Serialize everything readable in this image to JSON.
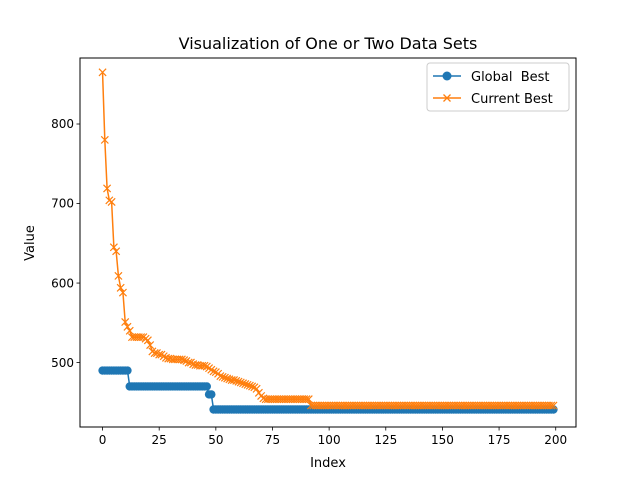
{
  "chart_data": {
    "type": "line",
    "title": "Visualization of One or Two Data Sets",
    "xlabel": "Index",
    "ylabel": "Value",
    "xlim": [
      -9.95,
      208.95
    ],
    "ylim": [
      419,
      883
    ],
    "xticks": [
      0,
      25,
      50,
      75,
      100,
      125,
      150,
      175,
      200
    ],
    "yticks": [
      500,
      600,
      700,
      800
    ],
    "legend_position": "upper right",
    "grid": false,
    "series": [
      {
        "name": "Global  Best",
        "color": "#1f77b4",
        "marker": "circle",
        "segments": [
          {
            "from": 0,
            "to": 11,
            "value": 490
          },
          {
            "from": 12,
            "to": 46,
            "value": 470
          },
          {
            "from": 47,
            "to": 48,
            "value": 460
          },
          {
            "from": 49,
            "to": 199,
            "value": 441
          }
        ]
      },
      {
        "name": "Current Best",
        "color": "#ff7f0e",
        "marker": "x",
        "points": [
          [
            0,
            865
          ],
          [
            1,
            780
          ],
          [
            2,
            719
          ],
          [
            3,
            704
          ],
          [
            4,
            702
          ],
          [
            5,
            645
          ],
          [
            6,
            640
          ],
          [
            7,
            609
          ],
          [
            8,
            594
          ],
          [
            9,
            588
          ],
          [
            10,
            551
          ],
          [
            11,
            545
          ],
          [
            12,
            540
          ],
          [
            13,
            532
          ],
          [
            14,
            532
          ],
          [
            15,
            532
          ],
          [
            16,
            532
          ],
          [
            17,
            532
          ],
          [
            18,
            532
          ],
          [
            19,
            530
          ],
          [
            20,
            528
          ],
          [
            21,
            522
          ],
          [
            22,
            514
          ],
          [
            23,
            512
          ],
          [
            24,
            512
          ],
          [
            25,
            510
          ],
          [
            26,
            510
          ],
          [
            27,
            508
          ],
          [
            28,
            506
          ],
          [
            29,
            505
          ],
          [
            30,
            505
          ],
          [
            31,
            504
          ],
          [
            32,
            504
          ],
          [
            33,
            504
          ],
          [
            34,
            504
          ],
          [
            35,
            504
          ],
          [
            36,
            503
          ],
          [
            37,
            502
          ],
          [
            38,
            500
          ],
          [
            39,
            500
          ],
          [
            40,
            498
          ],
          [
            41,
            497
          ],
          [
            42,
            497
          ],
          [
            43,
            496
          ],
          [
            44,
            496
          ],
          [
            45,
            496
          ],
          [
            46,
            495
          ],
          [
            47,
            493
          ],
          [
            48,
            491
          ],
          [
            49,
            489
          ],
          [
            50,
            488
          ],
          [
            51,
            486
          ],
          [
            52,
            483
          ],
          [
            53,
            482
          ],
          [
            54,
            481
          ],
          [
            55,
            480
          ],
          [
            56,
            479
          ],
          [
            57,
            478
          ],
          [
            58,
            478
          ],
          [
            59,
            477
          ],
          [
            60,
            476
          ],
          [
            61,
            475
          ],
          [
            62,
            474
          ],
          [
            63,
            473
          ],
          [
            64,
            472
          ],
          [
            65,
            471
          ],
          [
            66,
            470
          ],
          [
            67,
            469
          ],
          [
            68,
            467
          ],
          [
            69,
            462
          ],
          [
            70,
            458
          ],
          [
            71,
            455
          ],
          [
            72,
            454
          ],
          [
            73,
            454
          ],
          [
            74,
            454
          ],
          [
            75,
            454
          ],
          [
            76,
            454
          ],
          [
            77,
            454
          ],
          [
            78,
            454
          ],
          [
            79,
            454
          ],
          [
            80,
            454
          ],
          [
            81,
            454
          ],
          [
            82,
            454
          ],
          [
            83,
            454
          ],
          [
            84,
            454
          ],
          [
            85,
            454
          ],
          [
            86,
            454
          ],
          [
            87,
            454
          ],
          [
            88,
            454
          ],
          [
            89,
            454
          ],
          [
            90,
            454
          ],
          [
            91,
            454
          ],
          [
            92,
            446
          ],
          [
            93,
            446
          ],
          [
            199,
            446
          ]
        ]
      }
    ]
  }
}
